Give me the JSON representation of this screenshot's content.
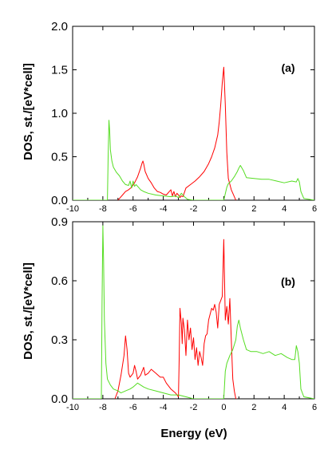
{
  "xlabel": "Energy (eV)",
  "ylabel": "DOS, st./[eV*cell]",
  "chart_data": [
    {
      "type": "line",
      "panel": "(a)",
      "xlim": [
        -10,
        6
      ],
      "ylim": [
        0,
        2.0
      ],
      "xticks": [
        -10,
        -8,
        -6,
        -4,
        -2,
        0,
        2,
        4,
        6
      ],
      "yticks": [
        0.0,
        0.5,
        1.0,
        1.5,
        2.0
      ],
      "ytick_labels": [
        "0.0",
        "0.5",
        "1.0",
        "1.5",
        "2.0"
      ],
      "xtick_labels": [
        "-10",
        "-8",
        "-6",
        "-4",
        "-2",
        "0",
        "2",
        "4",
        "6"
      ],
      "series": [
        {
          "color": "#ff0000",
          "x": [
            -7.0,
            -6.9,
            -6.7,
            -6.5,
            -6.3,
            -6.1,
            -5.9,
            -5.7,
            -5.5,
            -5.4,
            -5.35,
            -5.3,
            -5.2,
            -5.0,
            -4.8,
            -4.6,
            -4.4,
            -4.2,
            -4.0,
            -3.8,
            -3.6,
            -3.5,
            -3.4,
            -3.3,
            -3.2,
            -3.1,
            -3.0,
            -2.9,
            -2.8,
            -2.7,
            -2.6,
            -2.5,
            -2.2,
            -1.9,
            -1.6,
            -1.3,
            -1.0,
            -0.8,
            -0.6,
            -0.4,
            -0.3,
            -0.2,
            -0.1,
            0.0,
            0.1,
            0.2,
            0.3,
            0.5,
            0.7,
            0.8
          ],
          "y": [
            0.0,
            0.02,
            0.06,
            0.1,
            0.12,
            0.15,
            0.2,
            0.27,
            0.37,
            0.43,
            0.45,
            0.42,
            0.33,
            0.25,
            0.2,
            0.14,
            0.1,
            0.09,
            0.07,
            0.06,
            0.1,
            0.12,
            0.05,
            0.1,
            0.04,
            0.08,
            0.06,
            0.03,
            0.05,
            0.04,
            0.09,
            0.14,
            0.18,
            0.22,
            0.27,
            0.33,
            0.42,
            0.5,
            0.6,
            0.75,
            0.9,
            1.1,
            1.35,
            1.53,
            1.1,
            0.55,
            0.25,
            0.12,
            0.04,
            0.0
          ]
        },
        {
          "color": "#55dd22",
          "x": [
            -10.0,
            -7.7,
            -7.65,
            -7.6,
            -7.55,
            -7.5,
            -7.4,
            -7.3,
            -7.1,
            -6.9,
            -6.7,
            -6.5,
            -6.3,
            -6.2,
            -6.1,
            -6.0,
            -5.9,
            -5.8,
            -5.6,
            -5.5,
            -5.3,
            -5.0,
            -4.5,
            -4.0,
            -3.5,
            -3.2,
            -3.0,
            -2.8,
            -2.6,
            -2.4,
            -2.0,
            -1.0,
            0.0,
            0.2,
            0.3,
            0.5,
            0.7,
            0.9,
            1.0,
            1.1,
            1.3,
            1.5,
            2.0,
            2.5,
            3.0,
            3.5,
            4.0,
            4.5,
            4.8,
            4.9,
            5.0,
            5.1,
            5.3,
            6.0
          ],
          "y": [
            0.0,
            0.0,
            0.5,
            0.92,
            0.8,
            0.58,
            0.45,
            0.38,
            0.32,
            0.28,
            0.22,
            0.18,
            0.17,
            0.22,
            0.14,
            0.22,
            0.16,
            0.18,
            0.14,
            0.12,
            0.1,
            0.08,
            0.06,
            0.05,
            0.04,
            0.05,
            0.03,
            0.08,
            0.04,
            0.01,
            0.0,
            0.0,
            0.0,
            0.15,
            0.19,
            0.22,
            0.27,
            0.33,
            0.37,
            0.4,
            0.34,
            0.26,
            0.25,
            0.24,
            0.24,
            0.22,
            0.2,
            0.22,
            0.21,
            0.25,
            0.21,
            0.1,
            0.02,
            0.0
          ]
        }
      ]
    },
    {
      "type": "line",
      "panel": "(b)",
      "xlim": [
        -10,
        6
      ],
      "ylim": [
        0,
        0.9
      ],
      "xticks": [
        -10,
        -8,
        -6,
        -4,
        -2,
        0,
        2,
        4,
        6
      ],
      "yticks": [
        0.0,
        0.3,
        0.6,
        0.9
      ],
      "ytick_labels": [
        "0.0",
        "0.3",
        "0.6",
        "0.9"
      ],
      "xtick_labels": [
        "-10",
        "-8",
        "-6",
        "-4",
        "-2",
        "0",
        "2",
        "4",
        "6"
      ],
      "series": [
        {
          "color": "#ff0000",
          "x": [
            -7.2,
            -7.0,
            -6.8,
            -6.6,
            -6.5,
            -6.4,
            -6.3,
            -6.2,
            -6.0,
            -5.9,
            -5.8,
            -5.7,
            -5.5,
            -5.3,
            -5.2,
            -5.0,
            -4.8,
            -4.5,
            -4.2,
            -4.0,
            -3.8,
            -3.5,
            -3.2,
            -3.0,
            -2.95,
            -2.9,
            -2.8,
            -2.75,
            -2.7,
            -2.6,
            -2.5,
            -2.4,
            -2.3,
            -2.2,
            -2.1,
            -2.0,
            -1.9,
            -1.8,
            -1.7,
            -1.6,
            -1.5,
            -1.4,
            -1.3,
            -1.2,
            -1.1,
            -1.0,
            -0.9,
            -0.8,
            -0.7,
            -0.6,
            -0.5,
            -0.4,
            -0.3,
            -0.2,
            -0.1,
            0.0,
            0.05,
            0.1,
            0.2,
            0.3,
            0.4,
            0.5,
            0.6,
            0.7,
            0.8,
            0.85
          ],
          "y": [
            0.0,
            0.04,
            0.12,
            0.22,
            0.32,
            0.25,
            0.13,
            0.11,
            0.13,
            0.17,
            0.14,
            0.1,
            0.12,
            0.16,
            0.12,
            0.13,
            0.15,
            0.13,
            0.11,
            0.11,
            0.08,
            0.05,
            0.03,
            0.01,
            0.2,
            0.46,
            0.38,
            0.28,
            0.41,
            0.35,
            0.22,
            0.4,
            0.3,
            0.36,
            0.25,
            0.31,
            0.2,
            0.26,
            0.17,
            0.24,
            0.21,
            0.17,
            0.28,
            0.32,
            0.33,
            0.4,
            0.43,
            0.46,
            0.45,
            0.48,
            0.44,
            0.36,
            0.48,
            0.5,
            0.52,
            0.81,
            0.62,
            0.4,
            0.47,
            0.38,
            0.51,
            0.3,
            0.1,
            0.04,
            0.0,
            0.0
          ]
        },
        {
          "color": "#55dd22",
          "x": [
            -10.0,
            -8.1,
            -8.05,
            -8.0,
            -7.95,
            -7.9,
            -7.8,
            -7.7,
            -7.5,
            -7.3,
            -7.0,
            -6.8,
            -6.5,
            -6.2,
            -6.0,
            -5.7,
            -5.3,
            -5.0,
            -4.5,
            -4.0,
            -3.5,
            -3.0,
            -2.5,
            -2.0,
            -1.0,
            0.0,
            0.1,
            0.2,
            0.4,
            0.6,
            0.8,
            0.9,
            1.0,
            1.1,
            1.3,
            1.5,
            1.8,
            2.2,
            2.6,
            3.0,
            3.4,
            3.8,
            4.2,
            4.5,
            4.7,
            4.8,
            4.9,
            5.0,
            5.1,
            5.3,
            6.0
          ],
          "y": [
            0.0,
            0.0,
            0.5,
            0.88,
            0.7,
            0.4,
            0.18,
            0.1,
            0.07,
            0.05,
            0.04,
            0.03,
            0.04,
            0.05,
            0.06,
            0.08,
            0.06,
            0.05,
            0.04,
            0.03,
            0.02,
            0.02,
            0.01,
            0.0,
            0.0,
            0.0,
            0.14,
            0.18,
            0.22,
            0.25,
            0.3,
            0.37,
            0.4,
            0.36,
            0.3,
            0.25,
            0.24,
            0.24,
            0.23,
            0.24,
            0.22,
            0.23,
            0.21,
            0.2,
            0.2,
            0.27,
            0.24,
            0.18,
            0.05,
            0.01,
            0.0
          ]
        }
      ]
    }
  ]
}
